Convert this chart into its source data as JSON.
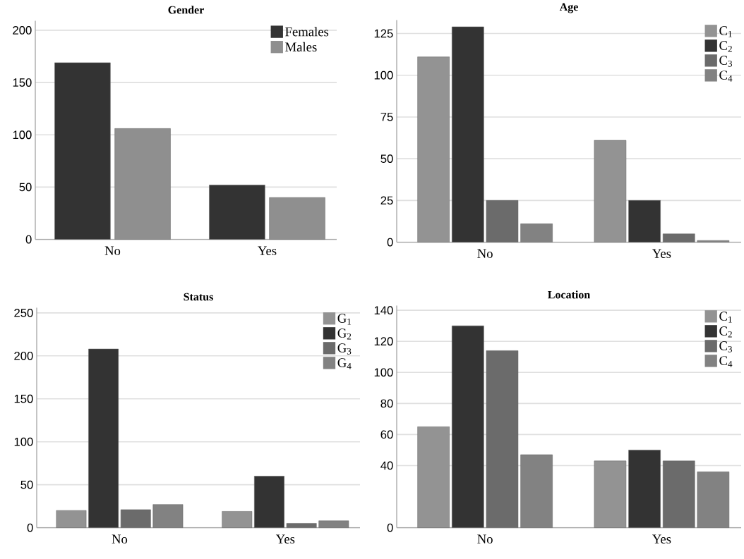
{
  "chart_data": [
    {
      "type": "bar",
      "title": "Gender",
      "categories": [
        "No",
        "Yes"
      ],
      "grid": "y",
      "legend": "top right",
      "ylim": [
        0,
        209
      ],
      "yticks": [
        0,
        50,
        100,
        150,
        200
      ],
      "series": [
        {
          "name": "Females",
          "color": "#333333",
          "values": [
            169,
            52
          ]
        },
        {
          "name": "Males",
          "color": "#8f8f8f",
          "values": [
            106,
            40
          ]
        }
      ]
    },
    {
      "type": "bar",
      "title": "Age",
      "categories": [
        "No",
        "Yes"
      ],
      "grid": "y",
      "legend": "top right",
      "ylim": [
        0,
        133
      ],
      "yticks": [
        0,
        25,
        50,
        75,
        100,
        125
      ],
      "series": [
        {
          "name": "C$_{1}$",
          "color": "#939393",
          "values": [
            111,
            61
          ]
        },
        {
          "name": "C$_{2}$",
          "color": "#333333",
          "values": [
            129,
            25
          ]
        },
        {
          "name": "C$_{3}$",
          "color": "#6b6b6b",
          "values": [
            25,
            5
          ]
        },
        {
          "name": "C$_{4}$",
          "color": "#828282",
          "values": [
            11,
            1
          ]
        }
      ]
    },
    {
      "type": "bar",
      "title": "Status",
      "categories": [
        "No",
        "Yes"
      ],
      "grid": "y",
      "legend": "top right",
      "ylim": [
        0,
        256
      ],
      "yticks": [
        0,
        50,
        100,
        150,
        200,
        250
      ],
      "series": [
        {
          "name": "G$_{1}$",
          "color": "#939393",
          "values": [
            20,
            19
          ]
        },
        {
          "name": "G$_{2}$",
          "color": "#333333",
          "values": [
            208,
            60
          ]
        },
        {
          "name": "G$_{3}$",
          "color": "#6b6b6b",
          "values": [
            21,
            5
          ]
        },
        {
          "name": "G$_{4}$",
          "color": "#828282",
          "values": [
            27,
            8
          ]
        }
      ]
    },
    {
      "type": "bar",
      "title": "Location",
      "categories": [
        "No",
        "Yes"
      ],
      "grid": "y",
      "legend": "top right",
      "ylim": [
        0,
        143
      ],
      "yticks": [
        0,
        40,
        60,
        80,
        100,
        120,
        140
      ],
      "series": [
        {
          "name": "C$_{1}$",
          "color": "#939393",
          "values": [
            65,
            43
          ]
        },
        {
          "name": "C$_{2}$",
          "color": "#333333",
          "values": [
            130,
            50
          ]
        },
        {
          "name": "C$_{3}$",
          "color": "#6b6b6b",
          "values": [
            114,
            43
          ]
        },
        {
          "name": "C$_{4}$",
          "color": "#828282",
          "values": [
            47,
            36
          ]
        }
      ]
    }
  ]
}
